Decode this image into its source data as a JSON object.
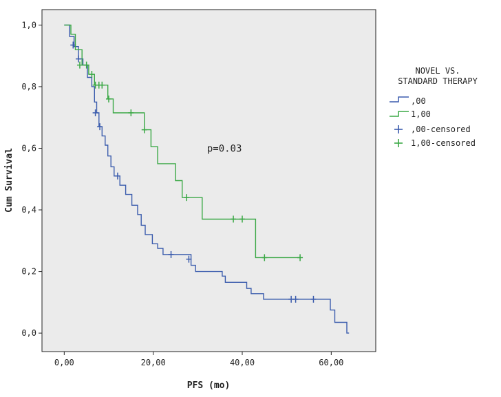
{
  "chart_data": {
    "type": "line",
    "subtype": "kaplan-meier",
    "xlabel": "PFS (mo)",
    "ylabel": "Cum Survival",
    "xlim": [
      -5,
      70
    ],
    "ylim": [
      -0.06,
      1.05
    ],
    "xticks": [
      0,
      20,
      40,
      60
    ],
    "xtick_labels": [
      "0,00",
      "20,00",
      "40,00",
      "60,00"
    ],
    "yticks": [
      0,
      0.2,
      0.4,
      0.6,
      0.8,
      1.0
    ],
    "ytick_labels": [
      "0,0",
      "0,2",
      "0,4",
      "0,6",
      "0,8",
      "1,0"
    ],
    "annotation": "p=0.03",
    "annotation_pos": [
      36,
      0.6
    ],
    "legend": {
      "title_lines": [
        "NOVEL VS.",
        "STANDARD THERAPY"
      ],
      "entries": [
        ",00",
        "1,00",
        ",00-censored",
        "1,00-censored"
      ],
      "placement": "right"
    },
    "series": [
      {
        "name": ",00",
        "color": "#3b5cad",
        "steps": [
          [
            0,
            1.0
          ],
          [
            1.2,
            0.963
          ],
          [
            2.2,
            0.93
          ],
          [
            3.2,
            0.89
          ],
          [
            4.2,
            0.87
          ],
          [
            5.2,
            0.83
          ],
          [
            6.2,
            0.8
          ],
          [
            6.8,
            0.75
          ],
          [
            7.3,
            0.715
          ],
          [
            7.8,
            0.67
          ],
          [
            8.5,
            0.64
          ],
          [
            9.2,
            0.61
          ],
          [
            9.8,
            0.575
          ],
          [
            10.5,
            0.54
          ],
          [
            11.2,
            0.51
          ],
          [
            12.5,
            0.48
          ],
          [
            13.8,
            0.45
          ],
          [
            15.2,
            0.415
          ],
          [
            16.5,
            0.385
          ],
          [
            17.3,
            0.35
          ],
          [
            18.2,
            0.32
          ],
          [
            19.8,
            0.29
          ],
          [
            21,
            0.275
          ],
          [
            22.2,
            0.255
          ],
          [
            28.5,
            0.22
          ],
          [
            29.5,
            0.2
          ],
          [
            35.5,
            0.185
          ],
          [
            36.2,
            0.165
          ],
          [
            41,
            0.145
          ],
          [
            42,
            0.128
          ],
          [
            44.8,
            0.11
          ],
          [
            59.8,
            0.075
          ],
          [
            60.8,
            0.035
          ],
          [
            63.5,
            0.0
          ],
          [
            64,
            0.0
          ]
        ],
        "censored": [
          [
            2,
            0.935
          ],
          [
            3.2,
            0.89
          ],
          [
            7,
            0.715
          ],
          [
            8,
            0.67
          ],
          [
            12,
            0.51
          ],
          [
            24,
            0.255
          ],
          [
            28,
            0.24
          ],
          [
            51,
            0.11
          ],
          [
            52,
            0.11
          ],
          [
            56,
            0.11
          ]
        ]
      },
      {
        "name": "1,00",
        "color": "#3aa845",
        "steps": [
          [
            0,
            1.0
          ],
          [
            1.5,
            0.97
          ],
          [
            2.5,
            0.92
          ],
          [
            4,
            0.87
          ],
          [
            5.5,
            0.84
          ],
          [
            6.8,
            0.805
          ],
          [
            9.8,
            0.76
          ],
          [
            11,
            0.715
          ],
          [
            18,
            0.66
          ],
          [
            19.5,
            0.605
          ],
          [
            21,
            0.55
          ],
          [
            25,
            0.495
          ],
          [
            26.5,
            0.44
          ],
          [
            31,
            0.37
          ],
          [
            43,
            0.245
          ],
          [
            53,
            0.245
          ]
        ],
        "censored": [
          [
            3.5,
            0.87
          ],
          [
            5,
            0.87
          ],
          [
            6.2,
            0.84
          ],
          [
            7,
            0.805
          ],
          [
            7.8,
            0.805
          ],
          [
            8.5,
            0.805
          ],
          [
            10,
            0.76
          ],
          [
            15,
            0.715
          ],
          [
            18,
            0.66
          ],
          [
            27.5,
            0.44
          ],
          [
            38,
            0.37
          ],
          [
            40,
            0.37
          ],
          [
            45,
            0.245
          ],
          [
            53,
            0.245
          ]
        ]
      }
    ]
  }
}
